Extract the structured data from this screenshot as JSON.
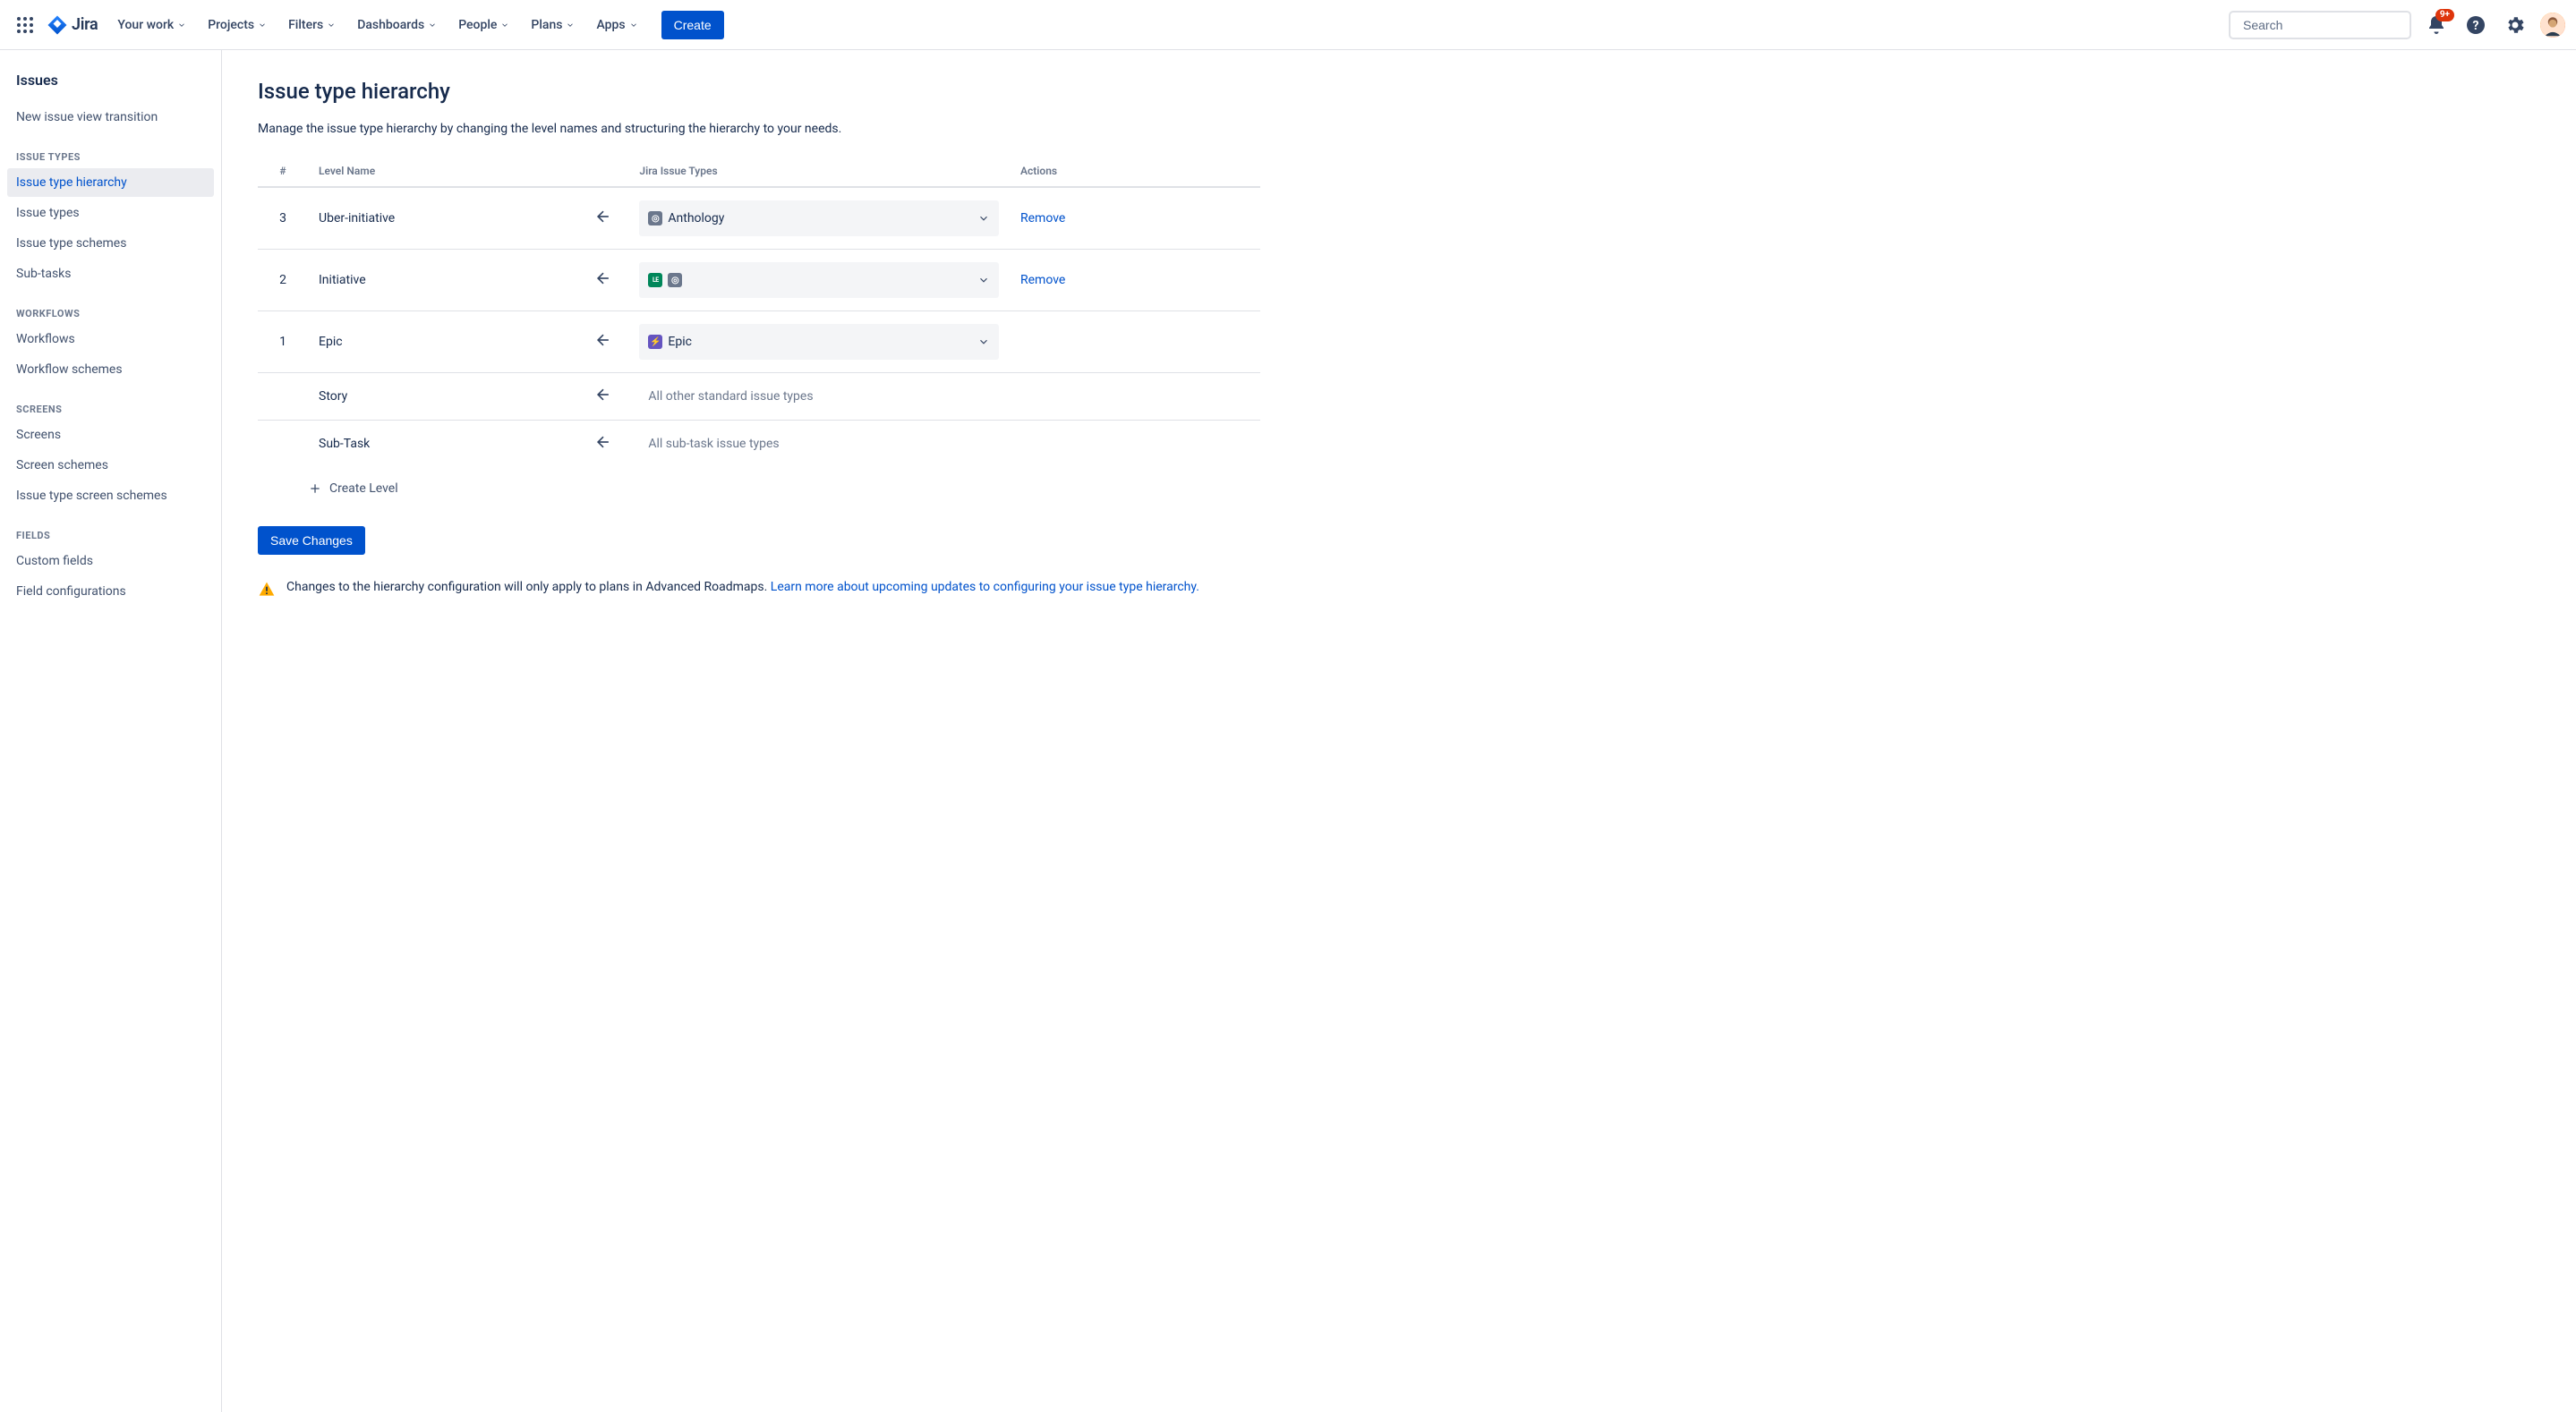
{
  "nav": {
    "product": "Jira",
    "items": [
      "Your work",
      "Projects",
      "Filters",
      "Dashboards",
      "People",
      "Plans",
      "Apps"
    ],
    "create": "Create",
    "search_placeholder": "Search",
    "notif_badge": "9+"
  },
  "sidebar": {
    "title": "Issues",
    "top_links": [
      "New issue view transition"
    ],
    "groups": [
      {
        "label": "Issue types",
        "items": [
          "Issue type hierarchy",
          "Issue types",
          "Issue type schemes",
          "Sub-tasks"
        ],
        "active_index": 0
      },
      {
        "label": "Workflows",
        "items": [
          "Workflows",
          "Workflow schemes"
        ]
      },
      {
        "label": "Screens",
        "items": [
          "Screens",
          "Screen schemes",
          "Issue type screen schemes"
        ]
      },
      {
        "label": "Fields",
        "items": [
          "Custom fields",
          "Field configurations"
        ]
      }
    ]
  },
  "page": {
    "title": "Issue type hierarchy",
    "desc": "Manage the issue type hierarchy by changing the level names and structuring the hierarchy to your needs.",
    "columns": {
      "num": "#",
      "name": "Level Name",
      "types": "Jira Issue Types",
      "actions": "Actions"
    },
    "rows": [
      {
        "num": "3",
        "name": "Uber-initiative",
        "types": [
          {
            "label": "Anthology",
            "icon": "gray",
            "glyph": "◎"
          }
        ],
        "remove": "Remove"
      },
      {
        "num": "2",
        "name": "Initiative",
        "types": [
          {
            "label": "",
            "icon": "teal",
            "glyph": "LE"
          },
          {
            "label": "",
            "icon": "gray",
            "glyph": "◎"
          }
        ],
        "remove": "Remove"
      },
      {
        "num": "1",
        "name": "Epic",
        "types": [
          {
            "label": "Epic",
            "icon": "purple",
            "glyph": "⚡"
          }
        ],
        "remove": ""
      },
      {
        "num": "",
        "name": "Story",
        "types_text": "All other standard issue types",
        "remove": ""
      },
      {
        "num": "",
        "name": "Sub-Task",
        "types_text": "All sub-task issue types",
        "remove": ""
      }
    ],
    "create_level": "Create Level",
    "save": "Save Changes",
    "warning_text": "Changes to the hierarchy configuration will only apply to plans in Advanced Roadmaps. ",
    "warning_link": "Learn more about upcoming updates to configuring your issue type hierarchy."
  }
}
